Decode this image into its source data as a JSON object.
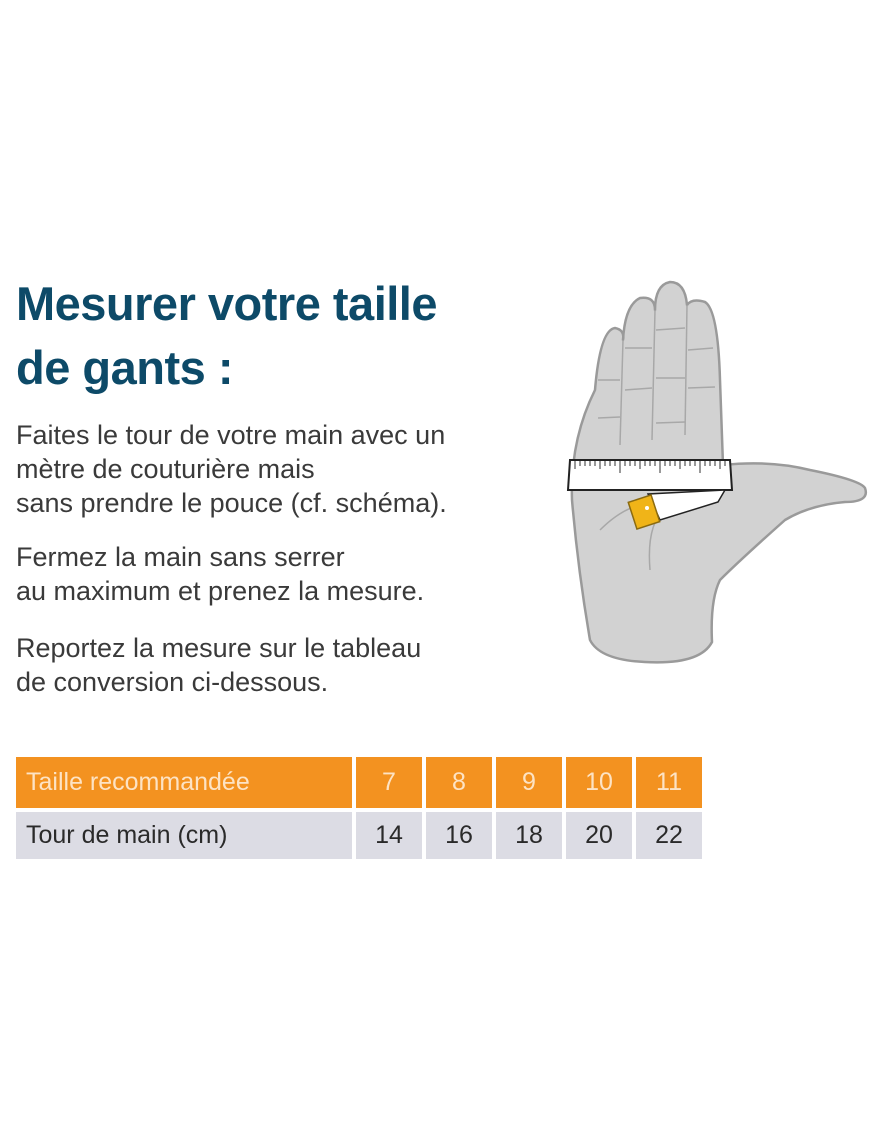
{
  "title": {
    "line1": "Mesurer votre taille",
    "line2": "de gants :"
  },
  "paragraphs": [
    [
      "Faites le tour de votre main avec un",
      "mètre de couturière mais",
      "sans prendre le pouce (cf. schéma)."
    ],
    [
      "Fermez la main sans serrer",
      "au maximum et prenez la mesure."
    ],
    [
      "Reportez la mesure sur le tableau",
      "de conversion ci-dessous."
    ]
  ],
  "table": {
    "header": {
      "label": "Taille recommandée",
      "values": [
        "7",
        "8",
        "9",
        "10",
        "11"
      ]
    },
    "row": {
      "label": "Tour de main (cm)",
      "values": [
        "14",
        "16",
        "18",
        "20",
        "22"
      ]
    }
  },
  "colors": {
    "title": "#0d4a68",
    "header_bg": "#f39220",
    "row_bg": "#dcdce4",
    "tape_tab": "#f0b418"
  },
  "illustration": "hand-with-measuring-tape"
}
